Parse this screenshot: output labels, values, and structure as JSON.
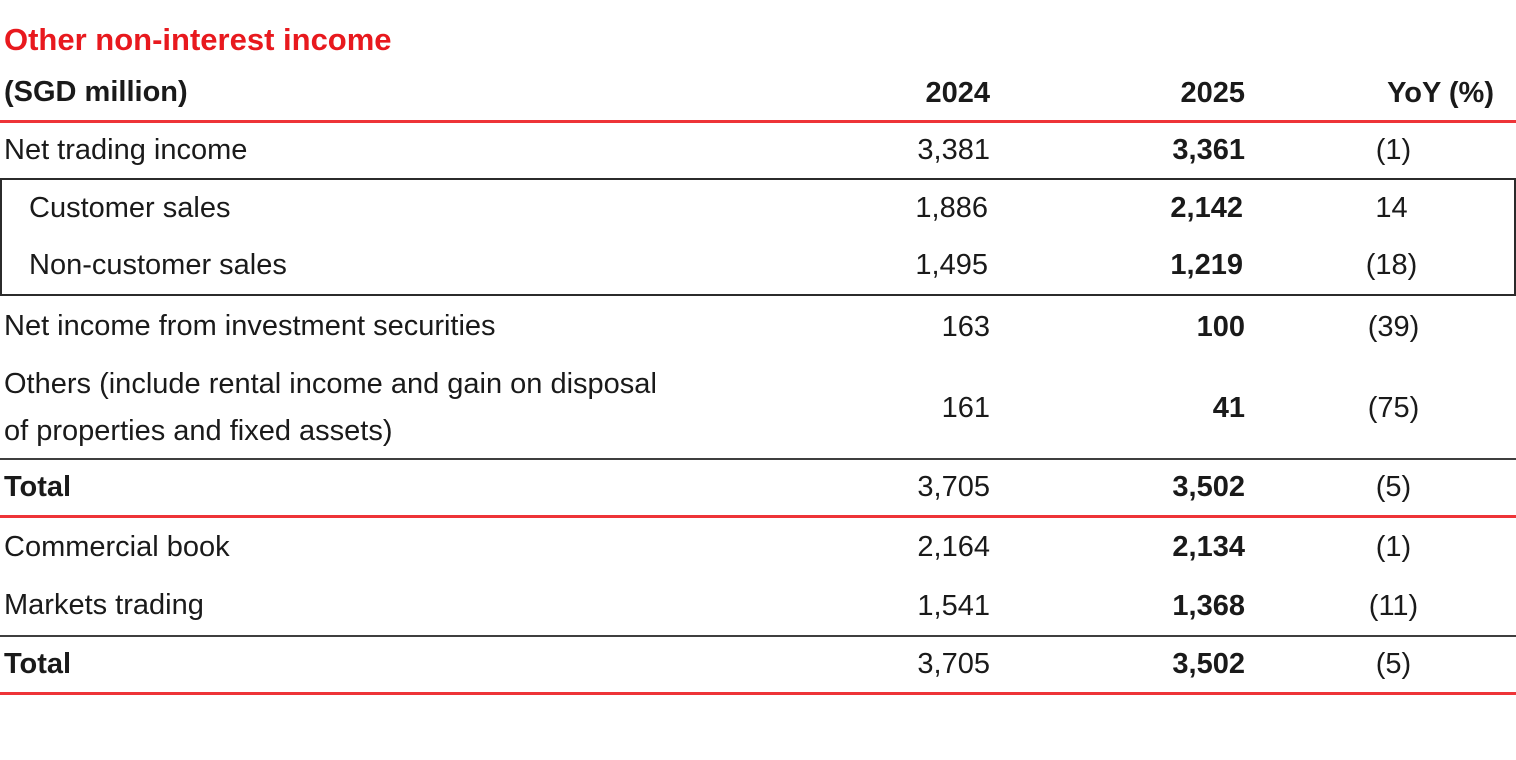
{
  "title": "Other non-interest income",
  "colors": {
    "accent_red": "#e8191e",
    "rule_red": "#ee3438",
    "rule_dark": "#3f3f3f",
    "box_border": "#2b2b2b",
    "text": "#1a1a1a"
  },
  "table": {
    "unit_label": "(SGD million)",
    "columns": {
      "y2024": "2024",
      "y2025": "2025",
      "yoy": "YoY (%)"
    },
    "rows": [
      {
        "label": "Net trading income",
        "y2024": "3,381",
        "y2025": "3,361",
        "yoy": "(1)"
      },
      {
        "label": "Customer sales",
        "y2024": "1,886",
        "y2025": "2,142",
        "yoy": "14"
      },
      {
        "label": "Non-customer sales",
        "y2024": "1,495",
        "y2025": "1,219",
        "yoy": "(18)"
      },
      {
        "label": "Net income from investment securities",
        "y2024": "163",
        "y2025": "100",
        "yoy": "(39)"
      },
      {
        "label": "Others (include rental income and gain on disposal of properties and fixed assets)",
        "y2024": "161",
        "y2025": "41",
        "yoy": "(75)"
      },
      {
        "label": "Total",
        "y2024": "3,705",
        "y2025": "3,502",
        "yoy": "(5)"
      },
      {
        "label": "Commercial book",
        "y2024": "2,164",
        "y2025": "2,134",
        "yoy": "(1)"
      },
      {
        "label": "Markets trading",
        "y2024": "1,541",
        "y2025": "1,368",
        "yoy": "(11)"
      },
      {
        "label": "Total",
        "y2024": "3,705",
        "y2025": "3,502",
        "yoy": "(5)"
      }
    ]
  }
}
